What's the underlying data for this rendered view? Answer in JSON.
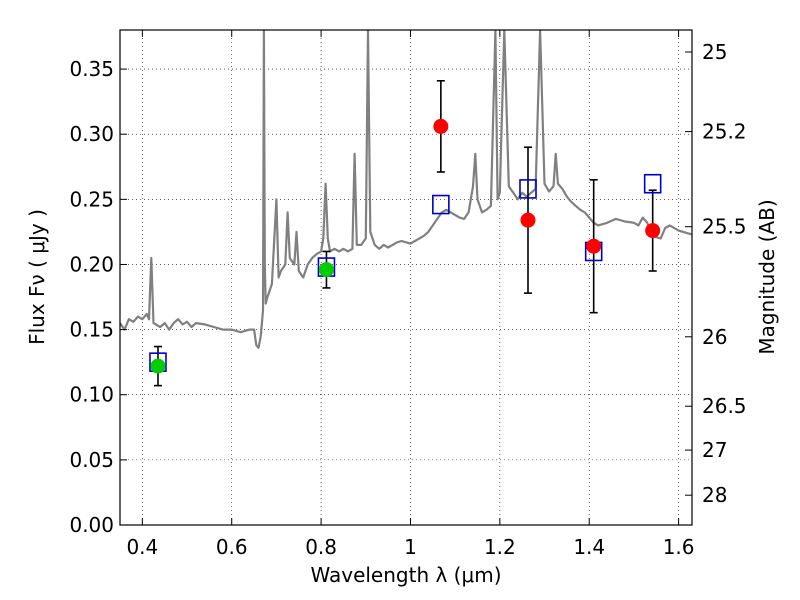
{
  "chart_data": {
    "type": "scatter",
    "xlabel": "Wavelength  λ (μm)",
    "ylabel": "Flux  Fν  ( μJy )",
    "ylabel_right": "Magnitude (AB)",
    "xlim": [
      0.35,
      1.63
    ],
    "ylim": [
      0.0,
      0.38
    ],
    "grid": true,
    "x_ticks": [
      0.4,
      0.6,
      0.8,
      1.0,
      1.2,
      1.4,
      1.6
    ],
    "x_tick_labels": [
      "0.4",
      "0.6",
      "0.8",
      "1",
      "1.2",
      "1.4",
      "1.6"
    ],
    "y_ticks": [
      0.0,
      0.05,
      0.1,
      0.15,
      0.2,
      0.25,
      0.3,
      0.35
    ],
    "y_tick_labels": [
      "0.00",
      "0.05",
      "0.10",
      "0.15",
      "0.20",
      "0.25",
      "0.30",
      "0.35"
    ],
    "right_ticks": [
      {
        "label": "25",
        "flux": 0.3631
      },
      {
        "label": "25.2",
        "flux": 0.302
      },
      {
        "label": "25.5",
        "flux": 0.229
      },
      {
        "label": "26",
        "flux": 0.1445
      },
      {
        "label": "26.5",
        "flux": 0.0912
      },
      {
        "label": "27",
        "flux": 0.0575
      },
      {
        "label": "28",
        "flux": 0.0229
      }
    ],
    "series": [
      {
        "kind": "spectrum",
        "color": "#808080",
        "points": [
          [
            0.35,
            0.155
          ],
          [
            0.36,
            0.15
          ],
          [
            0.37,
            0.158
          ],
          [
            0.38,
            0.156
          ],
          [
            0.39,
            0.16
          ],
          [
            0.4,
            0.158
          ],
          [
            0.41,
            0.162
          ],
          [
            0.415,
            0.158
          ],
          [
            0.42,
            0.205
          ],
          [
            0.425,
            0.155
          ],
          [
            0.44,
            0.152
          ],
          [
            0.45,
            0.155
          ],
          [
            0.46,
            0.15
          ],
          [
            0.47,
            0.155
          ],
          [
            0.48,
            0.158
          ],
          [
            0.49,
            0.154
          ],
          [
            0.5,
            0.156
          ],
          [
            0.51,
            0.152
          ],
          [
            0.52,
            0.155
          ],
          [
            0.54,
            0.154
          ],
          [
            0.56,
            0.152
          ],
          [
            0.58,
            0.15
          ],
          [
            0.6,
            0.15
          ],
          [
            0.62,
            0.148
          ],
          [
            0.64,
            0.15
          ],
          [
            0.65,
            0.15
          ],
          [
            0.655,
            0.138
          ],
          [
            0.66,
            0.136
          ],
          [
            0.665,
            0.145
          ],
          [
            0.67,
            0.165
          ],
          [
            0.672,
            0.38
          ],
          [
            0.674,
            0.2
          ],
          [
            0.676,
            0.17
          ],
          [
            0.68,
            0.175
          ],
          [
            0.69,
            0.185
          ],
          [
            0.7,
            0.25
          ],
          [
            0.705,
            0.19
          ],
          [
            0.71,
            0.195
          ],
          [
            0.72,
            0.2
          ],
          [
            0.725,
            0.24
          ],
          [
            0.73,
            0.205
          ],
          [
            0.74,
            0.2
          ],
          [
            0.745,
            0.225
          ],
          [
            0.75,
            0.195
          ],
          [
            0.76,
            0.19
          ],
          [
            0.77,
            0.2
          ],
          [
            0.78,
            0.205
          ],
          [
            0.79,
            0.208
          ],
          [
            0.8,
            0.21
          ],
          [
            0.805,
            0.22
          ],
          [
            0.81,
            0.262
          ],
          [
            0.815,
            0.22
          ],
          [
            0.82,
            0.21
          ],
          [
            0.83,
            0.212
          ],
          [
            0.84,
            0.21
          ],
          [
            0.85,
            0.212
          ],
          [
            0.86,
            0.21
          ],
          [
            0.87,
            0.212
          ],
          [
            0.875,
            0.285
          ],
          [
            0.88,
            0.215
          ],
          [
            0.89,
            0.215
          ],
          [
            0.9,
            0.22
          ],
          [
            0.905,
            0.38
          ],
          [
            0.91,
            0.225
          ],
          [
            0.92,
            0.215
          ],
          [
            0.93,
            0.212
          ],
          [
            0.94,
            0.215
          ],
          [
            0.95,
            0.213
          ],
          [
            0.96,
            0.215
          ],
          [
            0.97,
            0.217
          ],
          [
            0.98,
            0.218
          ],
          [
            0.99,
            0.217
          ],
          [
            1.0,
            0.216
          ],
          [
            1.01,
            0.218
          ],
          [
            1.02,
            0.22
          ],
          [
            1.03,
            0.222
          ],
          [
            1.04,
            0.225
          ],
          [
            1.05,
            0.23
          ],
          [
            1.06,
            0.235
          ],
          [
            1.07,
            0.24
          ],
          [
            1.08,
            0.242
          ],
          [
            1.09,
            0.24
          ],
          [
            1.1,
            0.238
          ],
          [
            1.11,
            0.236
          ],
          [
            1.12,
            0.235
          ],
          [
            1.13,
            0.24
          ],
          [
            1.14,
            0.26
          ],
          [
            1.145,
            0.285
          ],
          [
            1.15,
            0.25
          ],
          [
            1.16,
            0.24
          ],
          [
            1.17,
            0.242
          ],
          [
            1.18,
            0.245
          ],
          [
            1.19,
            0.38
          ],
          [
            1.195,
            0.25
          ],
          [
            1.2,
            0.255
          ],
          [
            1.21,
            0.38
          ],
          [
            1.22,
            0.26
          ],
          [
            1.23,
            0.255
          ],
          [
            1.24,
            0.25
          ],
          [
            1.25,
            0.255
          ],
          [
            1.26,
            0.252
          ],
          [
            1.27,
            0.255
          ],
          [
            1.28,
            0.258
          ],
          [
            1.29,
            0.38
          ],
          [
            1.3,
            0.262
          ],
          [
            1.31,
            0.256
          ],
          [
            1.32,
            0.26
          ],
          [
            1.325,
            0.285
          ],
          [
            1.33,
            0.262
          ],
          [
            1.34,
            0.258
          ],
          [
            1.35,
            0.252
          ],
          [
            1.36,
            0.248
          ],
          [
            1.37,
            0.245
          ],
          [
            1.38,
            0.242
          ],
          [
            1.39,
            0.24
          ],
          [
            1.4,
            0.236
          ],
          [
            1.41,
            0.232
          ],
          [
            1.42,
            0.23
          ],
          [
            1.44,
            0.232
          ],
          [
            1.46,
            0.235
          ],
          [
            1.48,
            0.233
          ],
          [
            1.5,
            0.232
          ],
          [
            1.51,
            0.23
          ],
          [
            1.52,
            0.236
          ],
          [
            1.53,
            0.232
          ],
          [
            1.54,
            0.222
          ],
          [
            1.56,
            0.22
          ],
          [
            1.57,
            0.228
          ],
          [
            1.58,
            0.23
          ],
          [
            1.6,
            0.226
          ],
          [
            1.62,
            0.224
          ],
          [
            1.63,
            0.223
          ]
        ]
      },
      {
        "kind": "open-squares",
        "color": "#0000cc",
        "points": [
          [
            0.435,
            0.125
          ],
          [
            0.812,
            0.198
          ],
          [
            1.068,
            0.246
          ],
          [
            1.263,
            0.258
          ],
          [
            1.41,
            0.21
          ],
          [
            1.542,
            0.262
          ]
        ]
      },
      {
        "kind": "filled-circles",
        "color": "#00cc00",
        "points": [
          {
            "x": 0.435,
            "y": 0.122,
            "err": 0.015
          },
          {
            "x": 0.812,
            "y": 0.196,
            "err": 0.014
          }
        ]
      },
      {
        "kind": "filled-circles",
        "color": "#ff0000",
        "points": [
          {
            "x": 1.068,
            "y": 0.306,
            "err": 0.035
          },
          {
            "x": 1.263,
            "y": 0.234,
            "err": 0.056
          },
          {
            "x": 1.41,
            "y": 0.214,
            "err": 0.051
          },
          {
            "x": 1.542,
            "y": 0.226,
            "err": 0.031
          }
        ]
      }
    ]
  }
}
